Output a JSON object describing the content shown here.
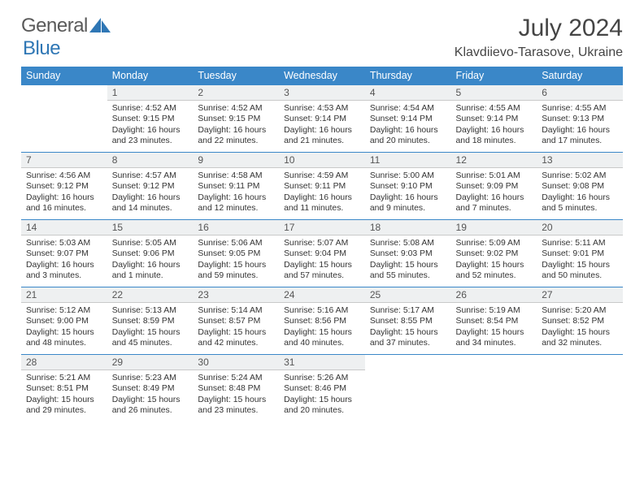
{
  "logo": {
    "text1": "General",
    "text2": "Blue",
    "color1": "#6a6a6a",
    "color2": "#2f77b5",
    "accent": "#2f77b5"
  },
  "title": "July 2024",
  "location": "Klavdiievo-Tarasove, Ukraine",
  "colors": {
    "header_bg": "#3a87c8",
    "header_text": "#ffffff",
    "rule": "#3a87c8",
    "daynum_bg": "#eef0f1",
    "daynum_border": "#c9c9c9",
    "text": "#333333"
  },
  "weekdays": [
    "Sunday",
    "Monday",
    "Tuesday",
    "Wednesday",
    "Thursday",
    "Friday",
    "Saturday"
  ],
  "weeks": [
    {
      "nums": [
        "",
        "1",
        "2",
        "3",
        "4",
        "5",
        "6"
      ],
      "cells": [
        "",
        "Sunrise: 4:52 AM\nSunset: 9:15 PM\nDaylight: 16 hours and 23 minutes.",
        "Sunrise: 4:52 AM\nSunset: 9:15 PM\nDaylight: 16 hours and 22 minutes.",
        "Sunrise: 4:53 AM\nSunset: 9:14 PM\nDaylight: 16 hours and 21 minutes.",
        "Sunrise: 4:54 AM\nSunset: 9:14 PM\nDaylight: 16 hours and 20 minutes.",
        "Sunrise: 4:55 AM\nSunset: 9:14 PM\nDaylight: 16 hours and 18 minutes.",
        "Sunrise: 4:55 AM\nSunset: 9:13 PM\nDaylight: 16 hours and 17 minutes."
      ]
    },
    {
      "nums": [
        "7",
        "8",
        "9",
        "10",
        "11",
        "12",
        "13"
      ],
      "cells": [
        "Sunrise: 4:56 AM\nSunset: 9:12 PM\nDaylight: 16 hours and 16 minutes.",
        "Sunrise: 4:57 AM\nSunset: 9:12 PM\nDaylight: 16 hours and 14 minutes.",
        "Sunrise: 4:58 AM\nSunset: 9:11 PM\nDaylight: 16 hours and 12 minutes.",
        "Sunrise: 4:59 AM\nSunset: 9:11 PM\nDaylight: 16 hours and 11 minutes.",
        "Sunrise: 5:00 AM\nSunset: 9:10 PM\nDaylight: 16 hours and 9 minutes.",
        "Sunrise: 5:01 AM\nSunset: 9:09 PM\nDaylight: 16 hours and 7 minutes.",
        "Sunrise: 5:02 AM\nSunset: 9:08 PM\nDaylight: 16 hours and 5 minutes."
      ]
    },
    {
      "nums": [
        "14",
        "15",
        "16",
        "17",
        "18",
        "19",
        "20"
      ],
      "cells": [
        "Sunrise: 5:03 AM\nSunset: 9:07 PM\nDaylight: 16 hours and 3 minutes.",
        "Sunrise: 5:05 AM\nSunset: 9:06 PM\nDaylight: 16 hours and 1 minute.",
        "Sunrise: 5:06 AM\nSunset: 9:05 PM\nDaylight: 15 hours and 59 minutes.",
        "Sunrise: 5:07 AM\nSunset: 9:04 PM\nDaylight: 15 hours and 57 minutes.",
        "Sunrise: 5:08 AM\nSunset: 9:03 PM\nDaylight: 15 hours and 55 minutes.",
        "Sunrise: 5:09 AM\nSunset: 9:02 PM\nDaylight: 15 hours and 52 minutes.",
        "Sunrise: 5:11 AM\nSunset: 9:01 PM\nDaylight: 15 hours and 50 minutes."
      ]
    },
    {
      "nums": [
        "21",
        "22",
        "23",
        "24",
        "25",
        "26",
        "27"
      ],
      "cells": [
        "Sunrise: 5:12 AM\nSunset: 9:00 PM\nDaylight: 15 hours and 48 minutes.",
        "Sunrise: 5:13 AM\nSunset: 8:59 PM\nDaylight: 15 hours and 45 minutes.",
        "Sunrise: 5:14 AM\nSunset: 8:57 PM\nDaylight: 15 hours and 42 minutes.",
        "Sunrise: 5:16 AM\nSunset: 8:56 PM\nDaylight: 15 hours and 40 minutes.",
        "Sunrise: 5:17 AM\nSunset: 8:55 PM\nDaylight: 15 hours and 37 minutes.",
        "Sunrise: 5:19 AM\nSunset: 8:54 PM\nDaylight: 15 hours and 34 minutes.",
        "Sunrise: 5:20 AM\nSunset: 8:52 PM\nDaylight: 15 hours and 32 minutes."
      ]
    },
    {
      "nums": [
        "28",
        "29",
        "30",
        "31",
        "",
        "",
        ""
      ],
      "cells": [
        "Sunrise: 5:21 AM\nSunset: 8:51 PM\nDaylight: 15 hours and 29 minutes.",
        "Sunrise: 5:23 AM\nSunset: 8:49 PM\nDaylight: 15 hours and 26 minutes.",
        "Sunrise: 5:24 AM\nSunset: 8:48 PM\nDaylight: 15 hours and 23 minutes.",
        "Sunrise: 5:26 AM\nSunset: 8:46 PM\nDaylight: 15 hours and 20 minutes.",
        "",
        "",
        ""
      ]
    }
  ]
}
